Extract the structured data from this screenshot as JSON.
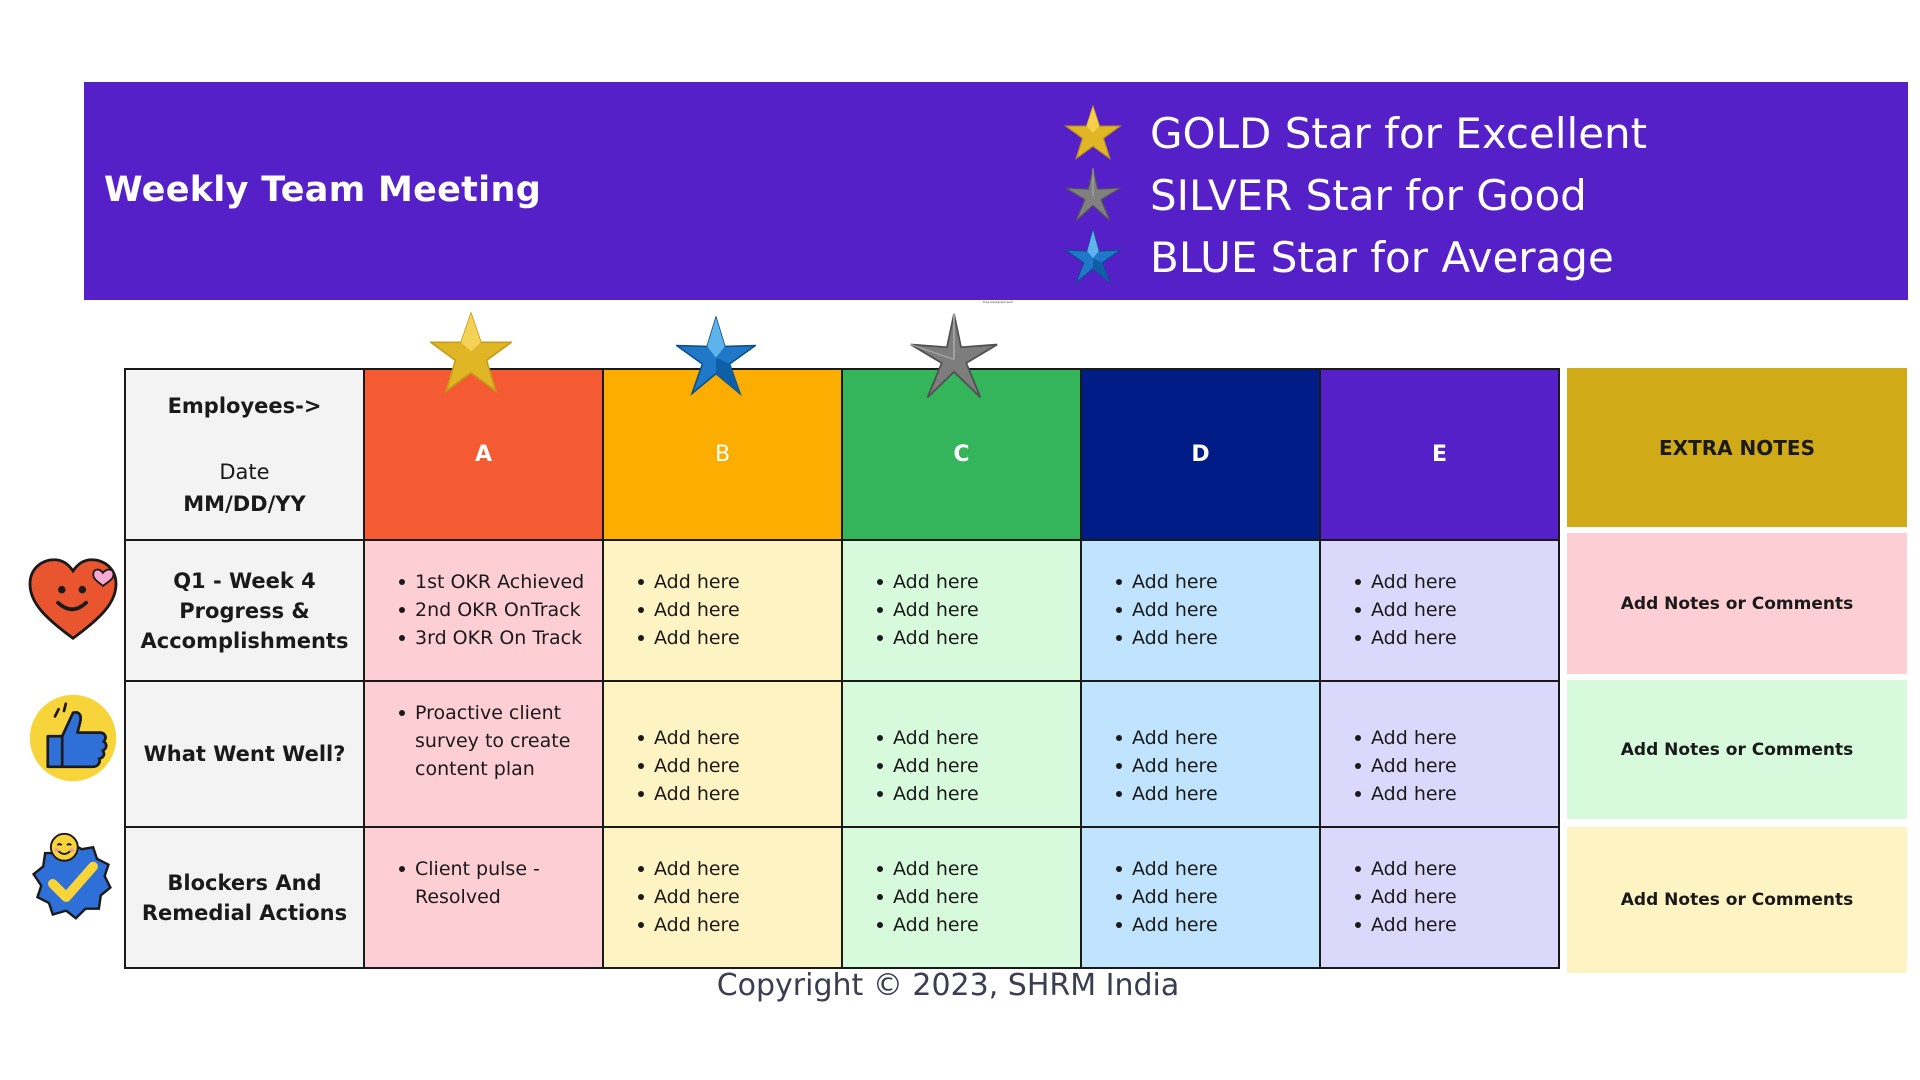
{
  "banner": {
    "title": "Weekly Team Meeting",
    "background": "#5620c8",
    "legend": [
      {
        "star": "gold-star",
        "color": "#e0b526",
        "label": "GOLD Star for Excellent"
      },
      {
        "star": "silver-star",
        "color": "#808080",
        "label": "SILVER Star for Good"
      },
      {
        "star": "blue-star",
        "color": "#1f78c8",
        "label": "BLUE Star for Average"
      }
    ],
    "tiny_caption": "Free paragraph text"
  },
  "table": {
    "corner": {
      "employees_label": "Employees->",
      "date_label": "Date",
      "date_format": "MM/DD/YY"
    },
    "columns": [
      {
        "name": "A",
        "color": "#f45b32",
        "star": "gold-star"
      },
      {
        "name": "B",
        "color": "#fbad00",
        "star": "blue-star"
      },
      {
        "name": "C",
        "color": "#34b45b",
        "star": "silver-star"
      },
      {
        "name": "D",
        "color": "#001c87",
        "star": ""
      },
      {
        "name": "E",
        "color": "#5620c8",
        "star": ""
      }
    ],
    "rows": [
      {
        "label": "Q1 - Week 4 Progress & Accomplishments",
        "icon": "heart-smile-icon",
        "cells": [
          [
            "1st OKR Achieved",
            "2nd OKR OnTrack",
            "3rd OKR On Track"
          ],
          [
            "Add here",
            "Add here",
            "Add here"
          ],
          [
            "Add here",
            "Add here",
            "Add here"
          ],
          [
            "Add here",
            "Add here",
            "Add here"
          ],
          [
            "Add here",
            "Add here",
            "Add here"
          ]
        ]
      },
      {
        "label": "What Went Well?",
        "icon": "thumbs-up-icon",
        "cells": [
          [
            "Proactive client survey to create content plan"
          ],
          [
            "Add here",
            "Add here",
            "Add here"
          ],
          [
            "Add here",
            "Add here",
            "Add here"
          ],
          [
            "Add here",
            "Add here",
            "Add here"
          ],
          [
            "Add here",
            "Add here",
            "Add here"
          ]
        ]
      },
      {
        "label": "Blockers And Remedial Actions",
        "icon": "check-badge-icon",
        "cells": [
          [
            "Client pulse - Resolved"
          ],
          [
            "Add here",
            "Add here",
            "Add here"
          ],
          [
            "Add here",
            "Add here",
            "Add here"
          ],
          [
            "Add here",
            "Add here",
            "Add here"
          ],
          [
            "Add here",
            "Add here",
            "Add here"
          ]
        ]
      }
    ]
  },
  "extra_notes": {
    "header": "EXTRA NOTES",
    "items": [
      {
        "text": "Add Notes or Comments",
        "color": "#fdced4"
      },
      {
        "text": "Add Notes or Comments",
        "color": "#d6fadb"
      },
      {
        "text": "Add Notes or Comments",
        "color": "#fef3c2"
      }
    ]
  },
  "footer": {
    "copyright": "Copyright © 2023, SHRM India"
  }
}
